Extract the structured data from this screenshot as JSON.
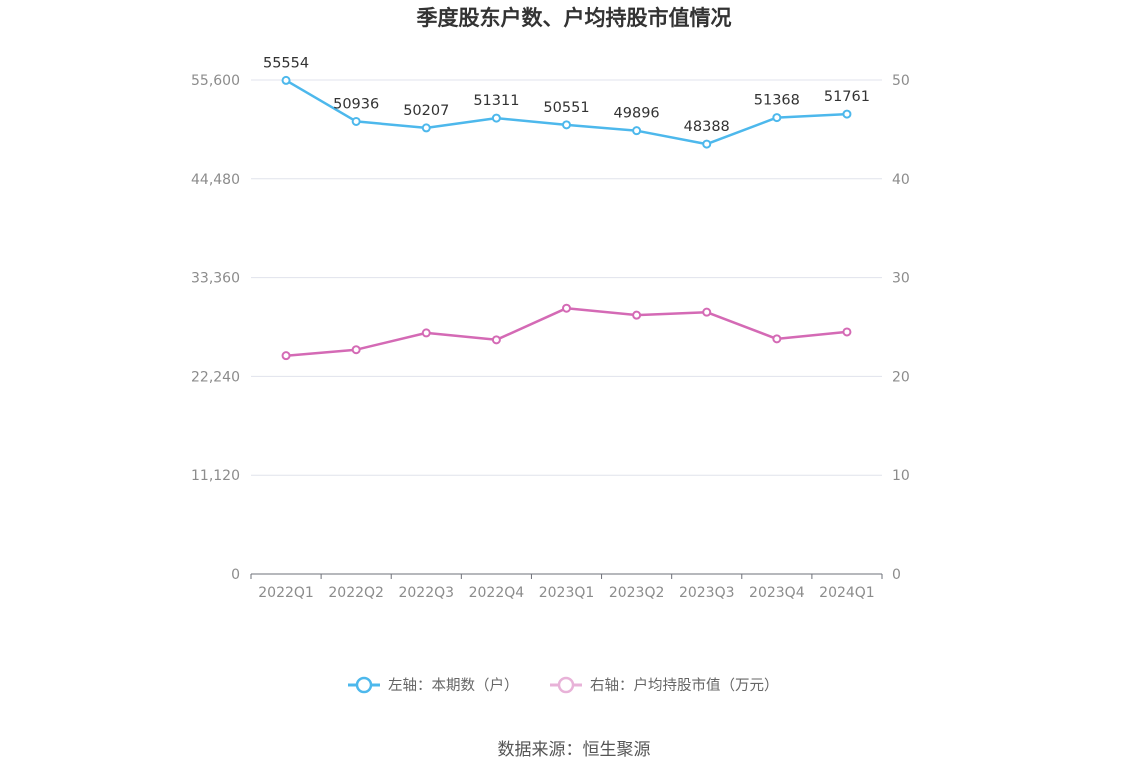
{
  "chart_data": {
    "type": "line",
    "title": "季度股东户数、户均持股市值情况",
    "categories": [
      "2022Q1",
      "2022Q2",
      "2022Q3",
      "2022Q4",
      "2023Q1",
      "2023Q2",
      "2023Q3",
      "2023Q4",
      "2024Q1"
    ],
    "series": [
      {
        "name": "左轴：本期数（户）",
        "axis": "left",
        "color": "#4db8ec",
        "values": [
          55554,
          50936,
          50207,
          51311,
          50551,
          49896,
          48388,
          51368,
          51761
        ],
        "data_labels": [
          "55554",
          "50936",
          "50207",
          "51311",
          "50551",
          "49896",
          "48388",
          "51368",
          "51761"
        ]
      },
      {
        "name": "右轴：户均持股市值（万元）",
        "axis": "right",
        "color": "#d46ab5",
        "values": [
          22.1,
          22.7,
          24.4,
          23.7,
          26.9,
          26.2,
          26.5,
          23.8,
          24.5
        ]
      }
    ],
    "y_left": {
      "ylim": [
        0,
        55600
      ],
      "ticks": [
        "0",
        "11,120",
        "22,240",
        "33,360",
        "44,480",
        "55,600"
      ]
    },
    "y_right": {
      "ylim": [
        0,
        50
      ],
      "ticks": [
        "0",
        "10",
        "20",
        "30",
        "40",
        "50"
      ]
    },
    "grid": true,
    "legend": "bottom-center"
  },
  "source_text": "数据来源：恒生聚源"
}
